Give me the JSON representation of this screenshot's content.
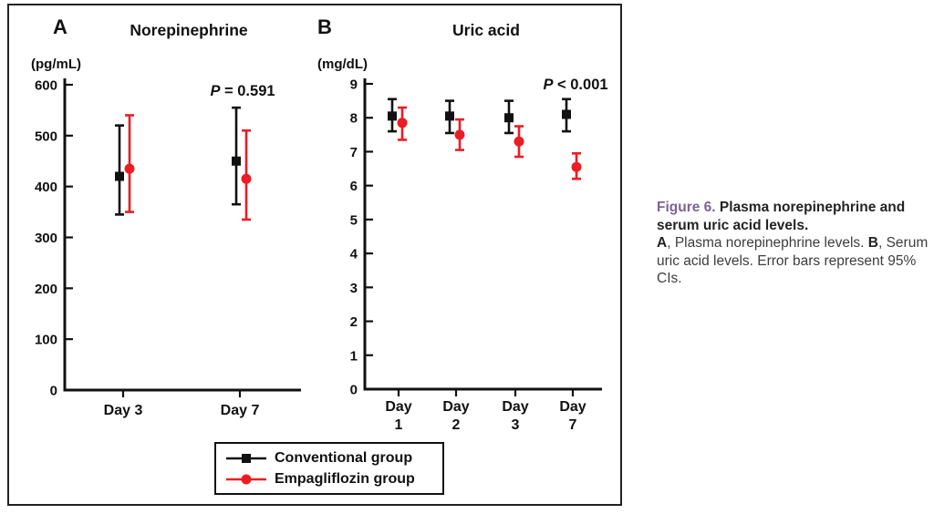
{
  "chart_data": [
    {
      "type": "scatter",
      "panel": "A",
      "title": "Norepinephrine",
      "ylabel": "(pg/mL)",
      "p_label": "P",
      "p_rest": " = 0.591",
      "categories": [
        "Day 3",
        "Day 7"
      ],
      "ylim": [
        0,
        600
      ],
      "yticks": [
        0,
        100,
        200,
        300,
        400,
        500,
        600
      ],
      "grid": false,
      "error_bars": "95% CI",
      "series": [
        {
          "name": "Conventional group",
          "marker": "square",
          "color": "#111111",
          "values": [
            420,
            450
          ],
          "ci_low": [
            345,
            365
          ],
          "ci_high": [
            520,
            555
          ]
        },
        {
          "name": "Empagliflozin group",
          "marker": "circle",
          "color": "#ed1c24",
          "values": [
            435,
            415
          ],
          "ci_low": [
            350,
            335
          ],
          "ci_high": [
            540,
            510
          ]
        }
      ]
    },
    {
      "type": "scatter",
      "panel": "B",
      "title": "Uric acid",
      "ylabel": "(mg/dL)",
      "p_label": "P",
      "p_rest": " < 0.001",
      "categories": [
        "Day 1",
        "Day 2",
        "Day 3",
        "Day 7"
      ],
      "ylim": [
        0,
        9
      ],
      "yticks": [
        0,
        1,
        2,
        3,
        4,
        5,
        6,
        7,
        8,
        9
      ],
      "grid": false,
      "error_bars": "95% CI",
      "series": [
        {
          "name": "Conventional group",
          "marker": "square",
          "color": "#111111",
          "values": [
            8.05,
            8.05,
            8.0,
            8.1
          ],
          "ci_low": [
            7.6,
            7.55,
            7.55,
            7.6
          ],
          "ci_high": [
            8.55,
            8.5,
            8.5,
            8.55
          ]
        },
        {
          "name": "Empagliflozin group",
          "marker": "circle",
          "color": "#ed1c24",
          "values": [
            7.85,
            7.5,
            7.3,
            6.55
          ],
          "ci_low": [
            7.35,
            7.05,
            6.85,
            6.2
          ],
          "ci_high": [
            8.3,
            7.95,
            7.75,
            6.95
          ]
        }
      ]
    }
  ],
  "legend": {
    "items": [
      {
        "label": "Conventional group",
        "marker": "square",
        "color": "#111111"
      },
      {
        "label": "Empagliflozin group",
        "marker": "circle",
        "color": "#ed1c24"
      }
    ]
  },
  "caption": {
    "figure_label": "Figure 6.",
    "title": "Plasma norepinephrine and serum uric acid levels.",
    "part_a_label": "A",
    "part_a_text": ", Plasma norepinephrine levels. ",
    "part_b_label": "B",
    "part_b_text": ", Serum uric acid levels. Error bars represent 95% CIs.",
    "accent_color": "#7d6493",
    "ink_color": "#111111"
  }
}
